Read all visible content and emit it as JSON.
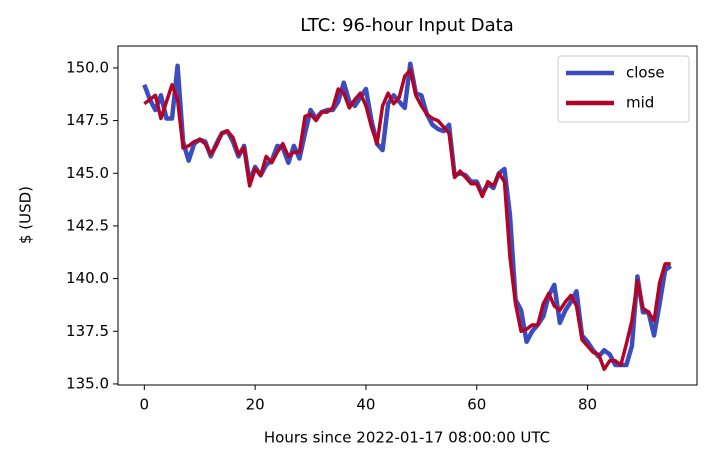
{
  "chart_data": {
    "type": "line",
    "title": "LTC: 96-hour Input Data",
    "x_label": "Hours since 2022-01-17 08:00:00 UTC",
    "y_label": "$ (USD)",
    "x": [
      0,
      1,
      2,
      3,
      4,
      5,
      6,
      7,
      8,
      9,
      10,
      11,
      12,
      13,
      14,
      15,
      16,
      17,
      18,
      19,
      20,
      21,
      22,
      23,
      24,
      25,
      26,
      27,
      28,
      29,
      30,
      31,
      32,
      33,
      34,
      35,
      36,
      37,
      38,
      39,
      40,
      41,
      42,
      43,
      44,
      45,
      46,
      47,
      48,
      49,
      50,
      51,
      52,
      53,
      54,
      55,
      56,
      57,
      58,
      59,
      60,
      61,
      62,
      63,
      64,
      65,
      66,
      67,
      68,
      69,
      70,
      71,
      72,
      73,
      74,
      75,
      76,
      77,
      78,
      79,
      80,
      81,
      82,
      83,
      84,
      85,
      86,
      87,
      88,
      89,
      90,
      91,
      92,
      93,
      94,
      95
    ],
    "series": [
      {
        "name": "close",
        "color": "#3b4cc0",
        "values": [
          149.2,
          148.5,
          148.0,
          148.7,
          147.6,
          147.6,
          150.1,
          146.5,
          145.6,
          146.4,
          146.6,
          146.5,
          145.8,
          146.4,
          146.9,
          147.0,
          146.5,
          145.8,
          146.3,
          144.6,
          145.3,
          144.9,
          145.4,
          145.6,
          146.3,
          146.2,
          145.5,
          146.3,
          145.7,
          146.9,
          148.0,
          147.6,
          147.9,
          148.0,
          148.0,
          148.4,
          149.3,
          148.4,
          148.2,
          148.6,
          149.0,
          147.5,
          146.4,
          146.1,
          148.3,
          148.7,
          148.4,
          148.1,
          150.2,
          148.8,
          148.7,
          147.8,
          147.3,
          147.1,
          147.0,
          147.3,
          144.9,
          145.0,
          144.9,
          144.6,
          144.6,
          144.0,
          144.5,
          144.3,
          145.0,
          145.2,
          143.0,
          139.0,
          138.5,
          137.0,
          137.5,
          137.8,
          138.2,
          139.2,
          139.7,
          137.9,
          138.5,
          138.9,
          139.4,
          137.3,
          137.0,
          136.6,
          136.3,
          136.6,
          136.4,
          135.9,
          135.9,
          135.9,
          136.8,
          140.1,
          138.4,
          138.4,
          137.3,
          138.8,
          140.4,
          140.6
        ]
      },
      {
        "name": "mid",
        "color": "#b40426",
        "values": [
          148.3,
          148.5,
          148.7,
          147.6,
          148.4,
          149.2,
          148.5,
          146.2,
          146.3,
          146.5,
          146.6,
          146.4,
          145.9,
          146.3,
          146.9,
          147.0,
          146.7,
          145.9,
          146.2,
          144.4,
          145.2,
          144.9,
          145.8,
          145.5,
          146.0,
          146.4,
          145.8,
          146.0,
          146.0,
          147.7,
          147.8,
          147.5,
          147.9,
          147.9,
          148.1,
          149.0,
          148.8,
          148.1,
          148.5,
          148.8,
          148.2,
          147.2,
          146.4,
          148.2,
          148.8,
          148.3,
          148.6,
          149.6,
          149.9,
          148.7,
          148.2,
          147.8,
          147.6,
          147.5,
          147.2,
          146.9,
          144.8,
          145.1,
          144.8,
          144.5,
          144.5,
          143.9,
          144.6,
          144.4,
          145.0,
          144.6,
          141.0,
          138.8,
          137.5,
          137.6,
          137.8,
          137.8,
          138.8,
          139.3,
          138.7,
          138.5,
          138.9,
          139.2,
          138.7,
          137.1,
          136.8,
          136.5,
          136.4,
          135.7,
          136.1,
          136.1,
          135.9,
          136.9,
          138.0,
          139.9,
          138.6,
          138.4,
          138.0,
          139.8,
          140.7,
          140.7
        ]
      }
    ],
    "xlim": [
      -4.75,
      99.75
    ],
    "xticks": [
      0,
      20,
      40,
      60,
      80
    ],
    "ylim": [
      134.95,
      151.04
    ],
    "yticks": [
      {
        "value": 135,
        "label": "135.0"
      },
      137.5,
      {
        "value": 140,
        "label": "140.0"
      },
      142.5,
      {
        "value": 145,
        "label": "145.0"
      },
      147.5,
      {
        "value": 150,
        "label": "150.0"
      }
    ],
    "legend": "upper right",
    "grid": false
  }
}
